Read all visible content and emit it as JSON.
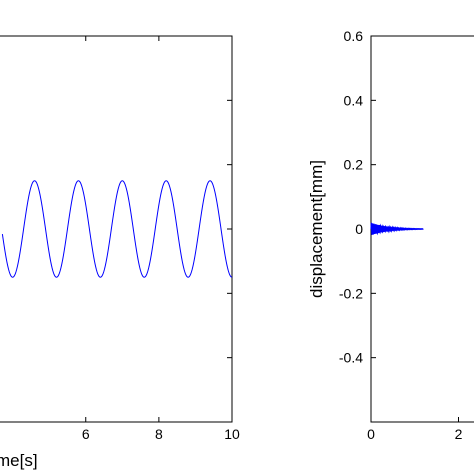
{
  "chart_data": [
    {
      "type": "line",
      "title": "",
      "xlabel": "time[s]",
      "xlabel_visible": "me[s]",
      "ylabel": "",
      "xlim": [
        3.6,
        10
      ],
      "ylim": [
        -0.6,
        0.6
      ],
      "x_ticks": [
        6,
        8,
        10
      ],
      "x_tick_labels": [
        "6",
        "8",
        "10"
      ],
      "grid": false,
      "series": [
        {
          "color": "#0000ff",
          "description": "steady sinusoidal oscillation",
          "amplitude": 0.15,
          "period_s": 1.2,
          "phase_peak_at_s": 5.8,
          "offset": 0.0
        }
      ]
    },
    {
      "type": "line",
      "title": "",
      "xlabel": "",
      "ylabel": "displacement[mm]",
      "xlim": [
        0,
        3.2
      ],
      "ylim": [
        -0.6,
        0.6
      ],
      "y_ticks": [
        0.6,
        0.4,
        0.2,
        0,
        -0.2,
        -0.4
      ],
      "y_tick_labels": [
        "0.6",
        "0.4",
        "0.2",
        "0",
        "-0.2",
        "-0.4"
      ],
      "x_ticks": [
        0,
        2
      ],
      "x_tick_labels": [
        "0",
        "2"
      ],
      "grid": false,
      "series": [
        {
          "color": "#0000ff",
          "description": "decaying oscillation near zero",
          "initial_amplitude": 0.02,
          "decay_end_s": 1.2
        }
      ]
    }
  ]
}
